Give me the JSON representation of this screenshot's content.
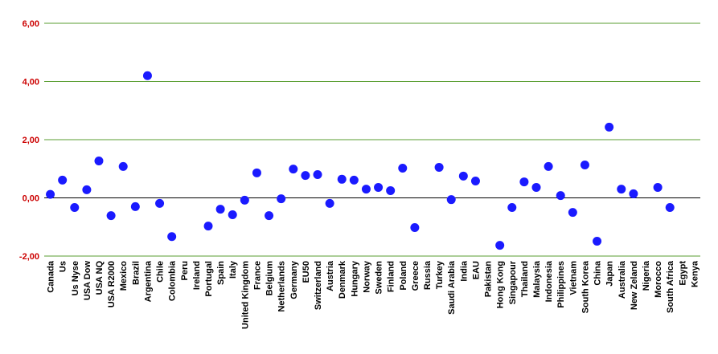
{
  "chart_data": {
    "type": "scatter",
    "categories": [
      "Canada",
      "Us",
      "Us Nyse",
      "USA Dow",
      "USA NQ",
      "USA R2000",
      "Mexico",
      "Brazil",
      "Argentina",
      "Chile",
      "Colombia",
      "Peru",
      "Ireland",
      "Portugal",
      "Spain",
      "Italy",
      "United Kingdom",
      "France",
      "Belgium",
      "Netherlands",
      "Germany",
      "EU50",
      "Switzerland",
      "Austria",
      "Denmark",
      "Hungary",
      "Norway",
      "Sweden",
      "Finland",
      "Poland",
      "Greece",
      "Russia",
      "Turkey",
      "Saudi Arabia",
      "India",
      "EAU",
      "Pakistan",
      "Hong Kong",
      "Singapour",
      "Thailand",
      "Malaysia",
      "Indonesia",
      "Philippines",
      "Vietnam",
      "South Korea",
      "China",
      "Japan",
      "Australia",
      "New Zeland",
      "Nigeria",
      "Morocco",
      "South Africa",
      "Egypt",
      "Kenya"
    ],
    "values": [
      0.12,
      0.61,
      -0.33,
      0.28,
      1.27,
      -0.61,
      1.08,
      -0.3,
      4.2,
      -0.19,
      -1.33,
      null,
      null,
      -0.97,
      -0.39,
      -0.58,
      -0.08,
      0.86,
      -0.61,
      -0.03,
      0.99,
      0.77,
      0.8,
      -0.19,
      0.64,
      0.61,
      0.3,
      0.36,
      0.25,
      1.02,
      -1.02,
      null,
      1.05,
      -0.06,
      0.75,
      0.58,
      null,
      -1.63,
      -0.33,
      0.55,
      0.36,
      1.08,
      0.08,
      -0.5,
      1.13,
      -1.49,
      2.43,
      0.3,
      0.14,
      null,
      0.36,
      -0.33,
      null,
      null
    ],
    "color": "#1a1aff",
    "ylim": [
      -2,
      6
    ],
    "yticks": [
      {
        "value": -2,
        "label": "-2,00"
      },
      {
        "value": 0,
        "label": "0,00"
      },
      {
        "value": 2,
        "label": "2,00"
      },
      {
        "value": 4,
        "label": "4,00"
      },
      {
        "value": 6,
        "label": "6,00"
      }
    ],
    "tick_label_color": "#cc0000",
    "grid": true,
    "grid_color": "#5a9e32"
  }
}
